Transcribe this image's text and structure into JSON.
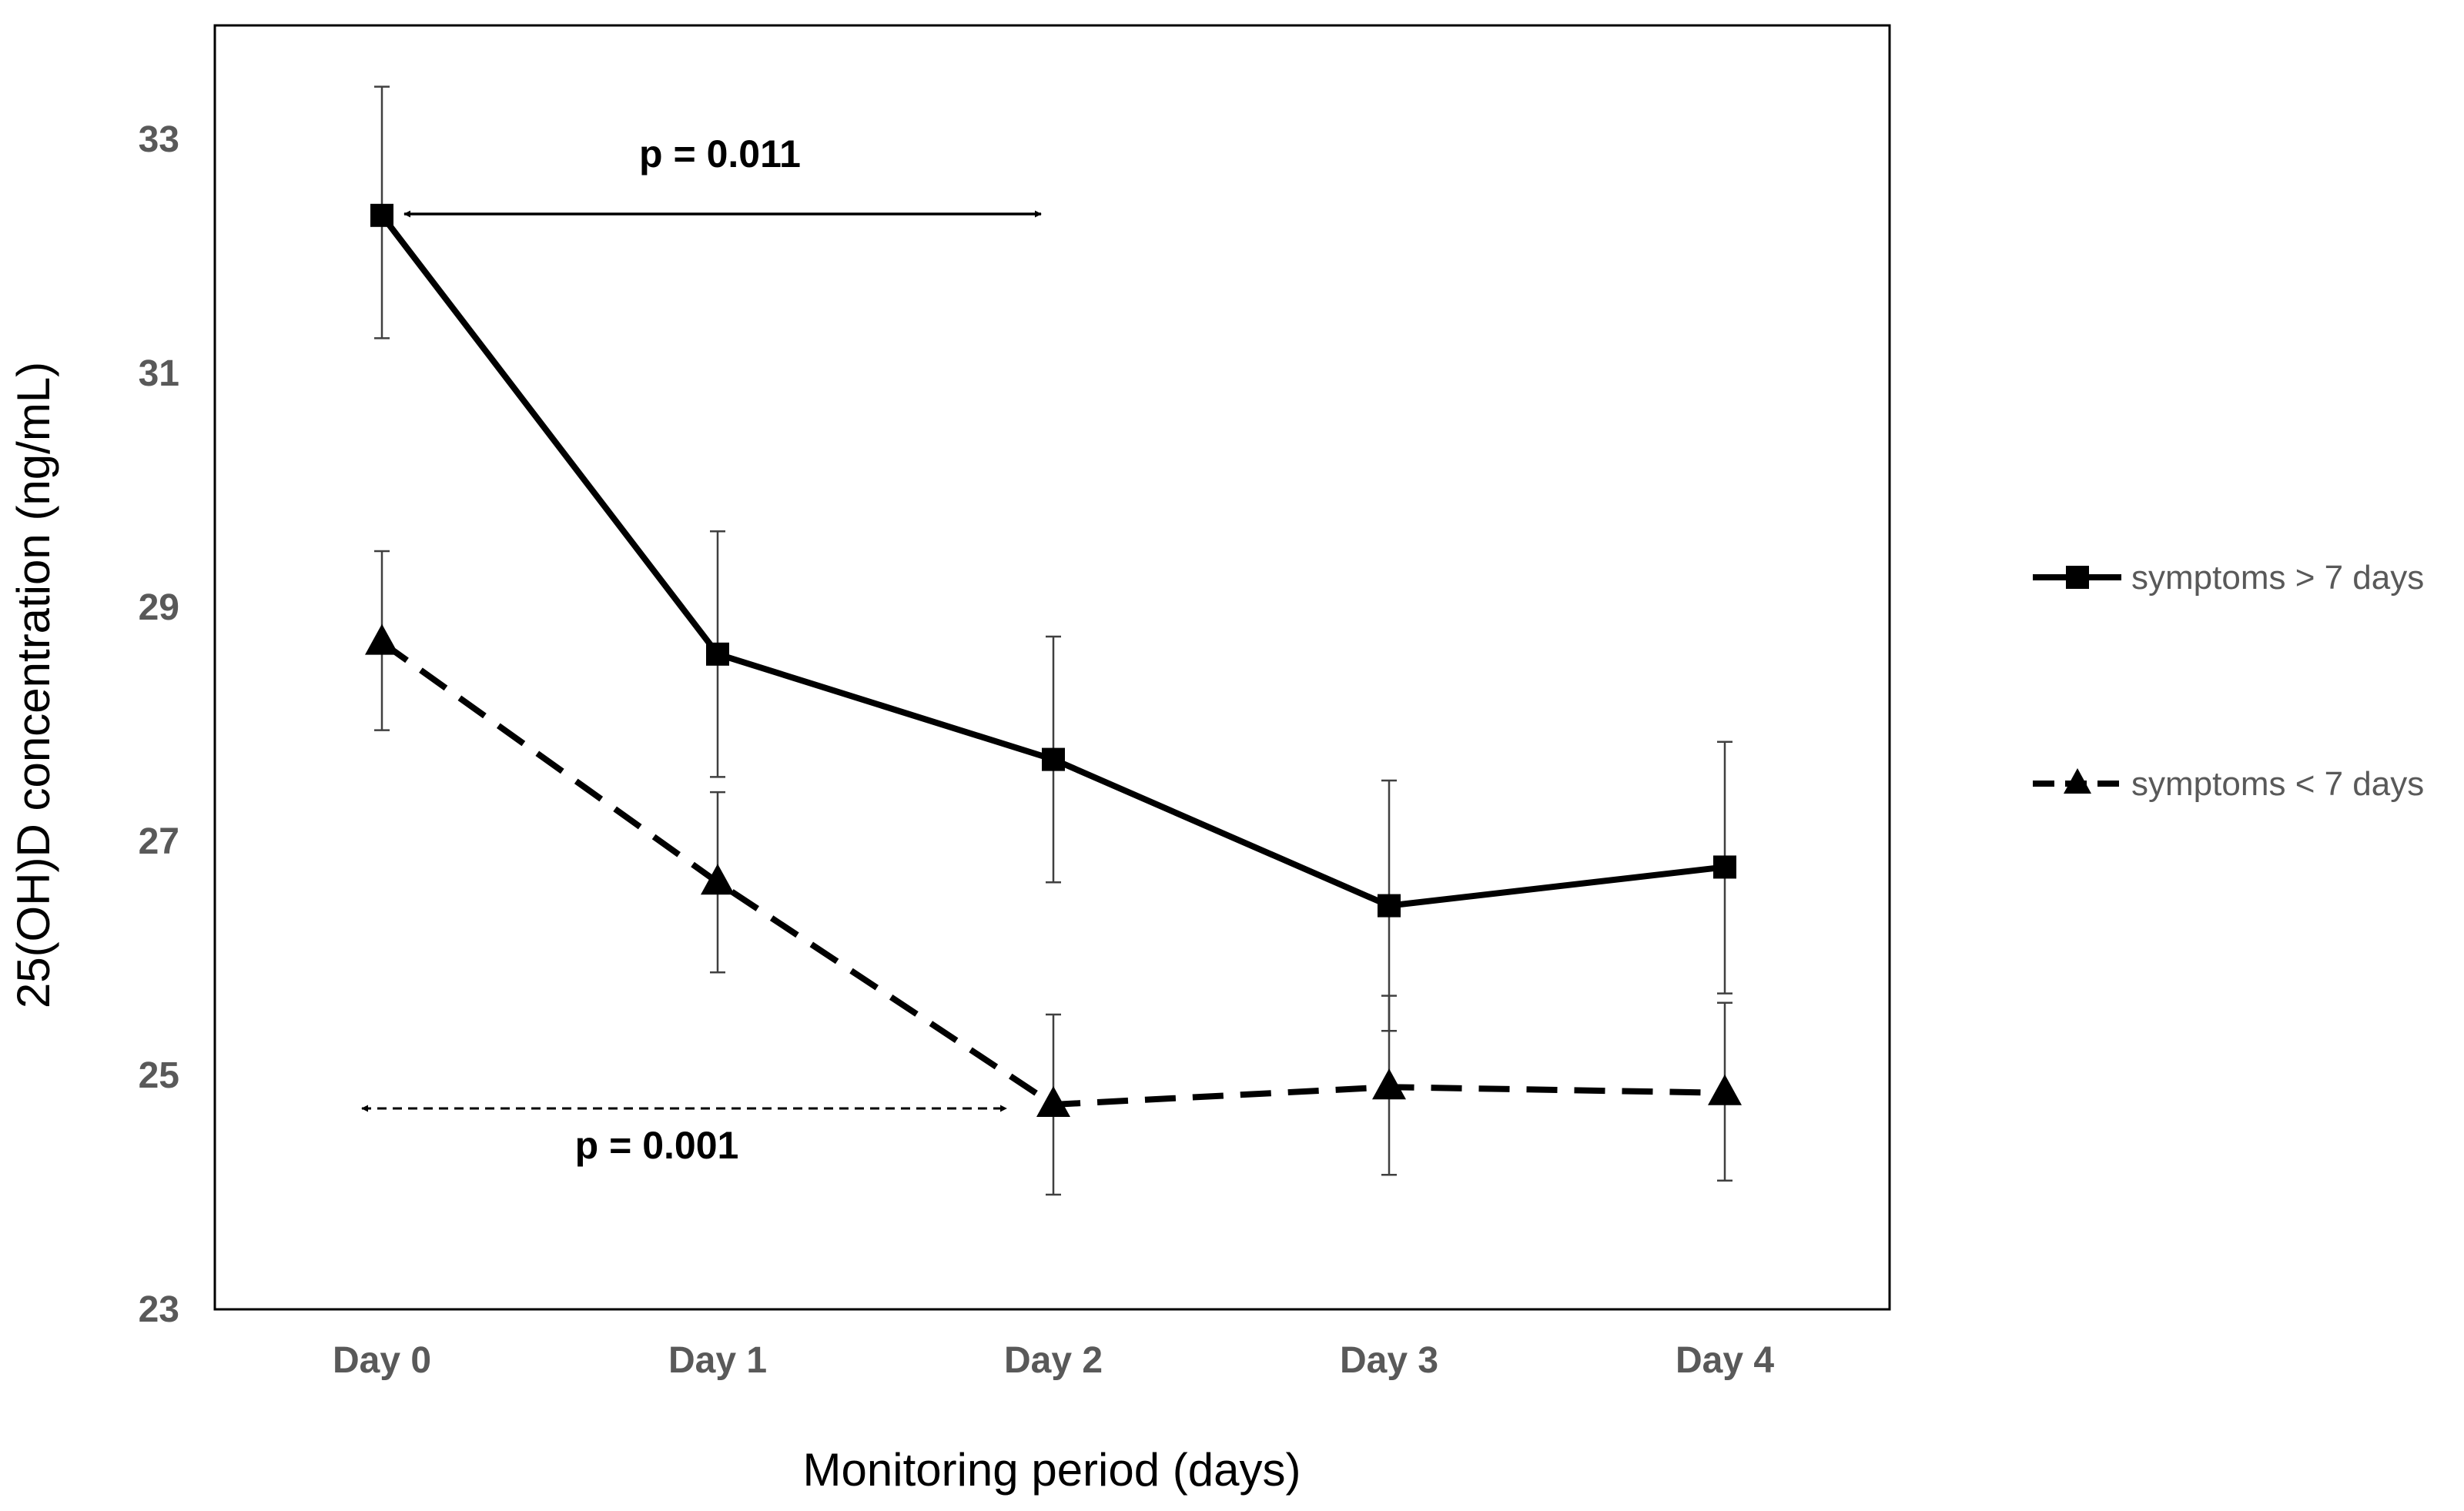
{
  "chart_data": {
    "type": "line",
    "title": "",
    "xlabel": "Monitoring period (days)",
    "ylabel": "25(OH)D concentration (ng/mL)",
    "categories": [
      "Day 0",
      "Day 1",
      "Day 2",
      "Day 3",
      "Day 4"
    ],
    "ylim": [
      23,
      34
    ],
    "yticks": [
      23,
      25,
      27,
      29,
      31,
      33
    ],
    "grid": false,
    "legend_position": "right",
    "series": [
      {
        "name": "symptoms > 7 days",
        "marker": "square",
        "line_style": "solid",
        "values": [
          32.35,
          28.6,
          27.7,
          26.45,
          26.78
        ],
        "error_upper": [
          33.45,
          29.65,
          28.75,
          27.52,
          27.85
        ],
        "error_lower": [
          31.3,
          27.55,
          26.65,
          25.38,
          25.7
        ]
      },
      {
        "name": "symptoms < 7 days",
        "marker": "triangle",
        "line_style": "dashed",
        "values": [
          28.7,
          26.65,
          24.75,
          24.9,
          24.85
        ],
        "error_upper": [
          29.48,
          27.42,
          25.52,
          25.68,
          25.62
        ],
        "error_lower": [
          27.95,
          25.88,
          23.98,
          24.15,
          24.1
        ]
      }
    ],
    "annotations": [
      {
        "text": "p = 0.011",
        "from": "Day 0",
        "to": "Day 2",
        "series": "symptoms > 7 days",
        "arrow_style": "solid"
      },
      {
        "text": "p = 0.001",
        "from": "Day 0",
        "to": "Day 2",
        "series": "symptoms < 7 days",
        "arrow_style": "dashed"
      }
    ]
  },
  "colors": {
    "series_line": "#000000",
    "axis_frame": "#000000",
    "tick_text": "#595959",
    "error_bar": "#404040"
  }
}
